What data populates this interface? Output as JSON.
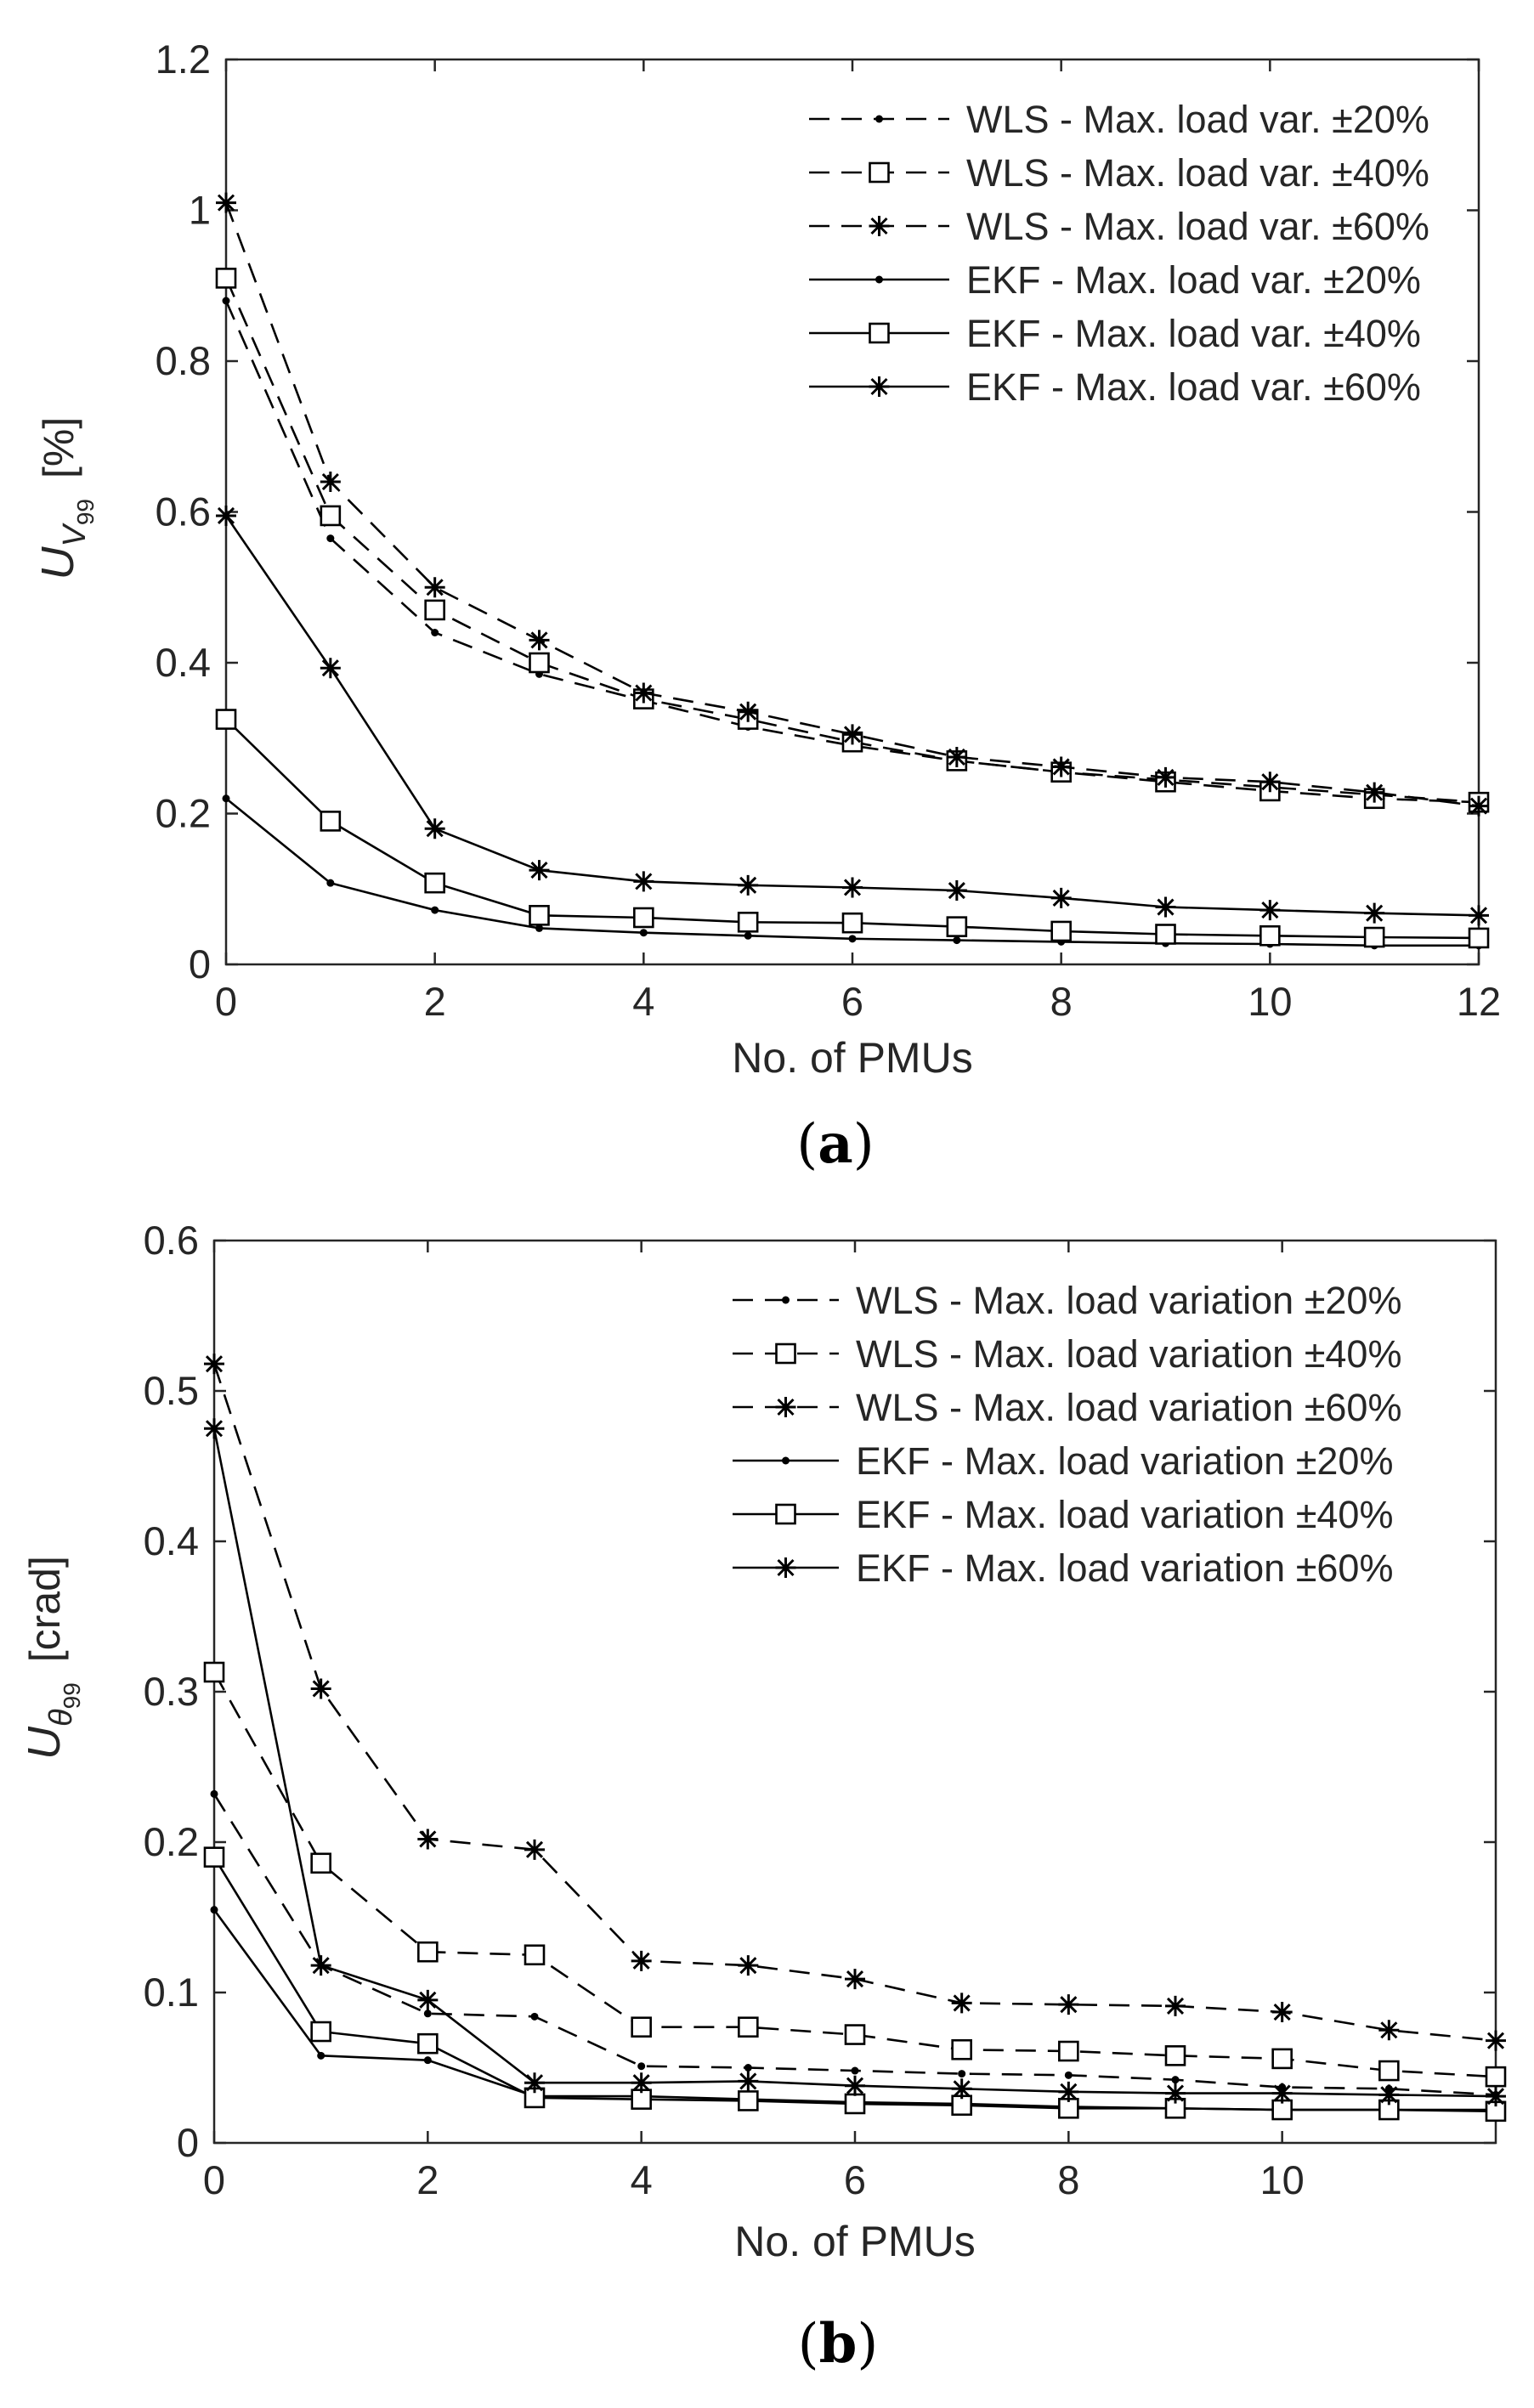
{
  "chart_data": [
    {
      "type": "line",
      "panel_label": "a",
      "xlabel": "No. of PMUs",
      "ylabel": "[%]",
      "ylabel_symbol": {
        "base": "U",
        "sub": "V",
        "subsub": "99"
      },
      "xlim": [
        0,
        12
      ],
      "ylim": [
        0,
        1.2
      ],
      "xticks": [
        "0",
        "2",
        "4",
        "6",
        "8",
        "10",
        "12"
      ],
      "yticks": [
        "0",
        "0.2",
        "0.4",
        "0.6",
        "0.8",
        "1",
        "1.2"
      ],
      "legend_position": "top-right",
      "x": [
        0,
        1,
        2,
        3,
        4,
        5,
        6,
        7,
        8,
        9,
        10,
        11,
        12
      ],
      "series": [
        {
          "name": "WLS - Max. load var. ±20%",
          "line": "dashed",
          "marker": "dot",
          "values": [
            0.88,
            0.565,
            0.44,
            0.385,
            0.35,
            0.315,
            0.29,
            0.27,
            0.255,
            0.245,
            0.235,
            0.225,
            0.215
          ]
        },
        {
          "name": "WLS - Max. load var. ±40%",
          "line": "dashed",
          "marker": "square",
          "values": [
            0.91,
            0.595,
            0.47,
            0.4,
            0.352,
            0.325,
            0.295,
            0.27,
            0.255,
            0.242,
            0.23,
            0.22,
            0.215
          ]
        },
        {
          "name": "WLS - Max. load var. ±60%",
          "line": "dashed",
          "marker": "star",
          "values": [
            1.01,
            0.64,
            0.5,
            0.43,
            0.36,
            0.335,
            0.305,
            0.275,
            0.262,
            0.248,
            0.242,
            0.228,
            0.21
          ]
        },
        {
          "name": "EKF - Max. load var. ±20%",
          "line": "solid",
          "marker": "dot",
          "values": [
            0.22,
            0.108,
            0.072,
            0.048,
            0.042,
            0.038,
            0.034,
            0.032,
            0.03,
            0.028,
            0.027,
            0.025,
            0.025
          ]
        },
        {
          "name": "EKF - Max. load var. ±40%",
          "line": "solid",
          "marker": "square",
          "values": [
            0.325,
            0.19,
            0.108,
            0.065,
            0.062,
            0.056,
            0.055,
            0.05,
            0.044,
            0.04,
            0.038,
            0.036,
            0.035
          ]
        },
        {
          "name": "EKF - Max. load var. ±60%",
          "line": "solid",
          "marker": "star",
          "values": [
            0.595,
            0.393,
            0.18,
            0.125,
            0.11,
            0.105,
            0.102,
            0.098,
            0.088,
            0.076,
            0.072,
            0.068,
            0.065
          ]
        }
      ]
    },
    {
      "type": "line",
      "panel_label": "b",
      "xlabel": "No. of PMUs",
      "ylabel": "[crad]",
      "ylabel_symbol": {
        "base": "U",
        "sub": "θ",
        "subsub": "99"
      },
      "xlim": [
        0,
        12
      ],
      "ylim": [
        0,
        0.6
      ],
      "xticks": [
        "0",
        "2",
        "4",
        "6",
        "8",
        "10"
      ],
      "yticks": [
        "0",
        "0.1",
        "0.2",
        "0.3",
        "0.4",
        "0.5",
        "0.6"
      ],
      "legend_position": "top-right",
      "x": [
        0,
        1,
        2,
        3,
        4,
        5,
        6,
        7,
        8,
        9,
        10,
        11,
        12
      ],
      "series": [
        {
          "name": "WLS - Max. load variation ±20%",
          "line": "dashed",
          "marker": "dot",
          "values": [
            0.232,
            0.118,
            0.086,
            0.084,
            0.051,
            0.05,
            0.048,
            0.046,
            0.045,
            0.042,
            0.037,
            0.036,
            0.032
          ]
        },
        {
          "name": "WLS - Max. load variation ±40%",
          "line": "dashed",
          "marker": "square",
          "values": [
            0.313,
            0.186,
            0.127,
            0.125,
            0.077,
            0.077,
            0.072,
            0.062,
            0.061,
            0.058,
            0.056,
            0.048,
            0.044
          ]
        },
        {
          "name": "WLS - Max. load variation ±60%",
          "line": "dashed",
          "marker": "star",
          "values": [
            0.518,
            0.302,
            0.202,
            0.195,
            0.121,
            0.118,
            0.109,
            0.093,
            0.092,
            0.091,
            0.087,
            0.075,
            0.068
          ]
        },
        {
          "name": "EKF - Max. load variation ±20%",
          "line": "solid",
          "marker": "dot",
          "values": [
            0.155,
            0.058,
            0.055,
            0.031,
            0.031,
            0.029,
            0.027,
            0.026,
            0.024,
            0.023,
            0.022,
            0.022,
            0.022
          ]
        },
        {
          "name": "EKF - Max. load variation ±40%",
          "line": "solid",
          "marker": "square",
          "values": [
            0.19,
            0.074,
            0.066,
            0.03,
            0.029,
            0.028,
            0.026,
            0.025,
            0.023,
            0.023,
            0.022,
            0.022,
            0.021
          ]
        },
        {
          "name": "EKF - Max. load variation ±60%",
          "line": "solid",
          "marker": "star",
          "values": [
            0.475,
            0.118,
            0.095,
            0.04,
            0.04,
            0.041,
            0.038,
            0.036,
            0.034,
            0.033,
            0.033,
            0.032,
            0.031
          ]
        }
      ]
    }
  ]
}
